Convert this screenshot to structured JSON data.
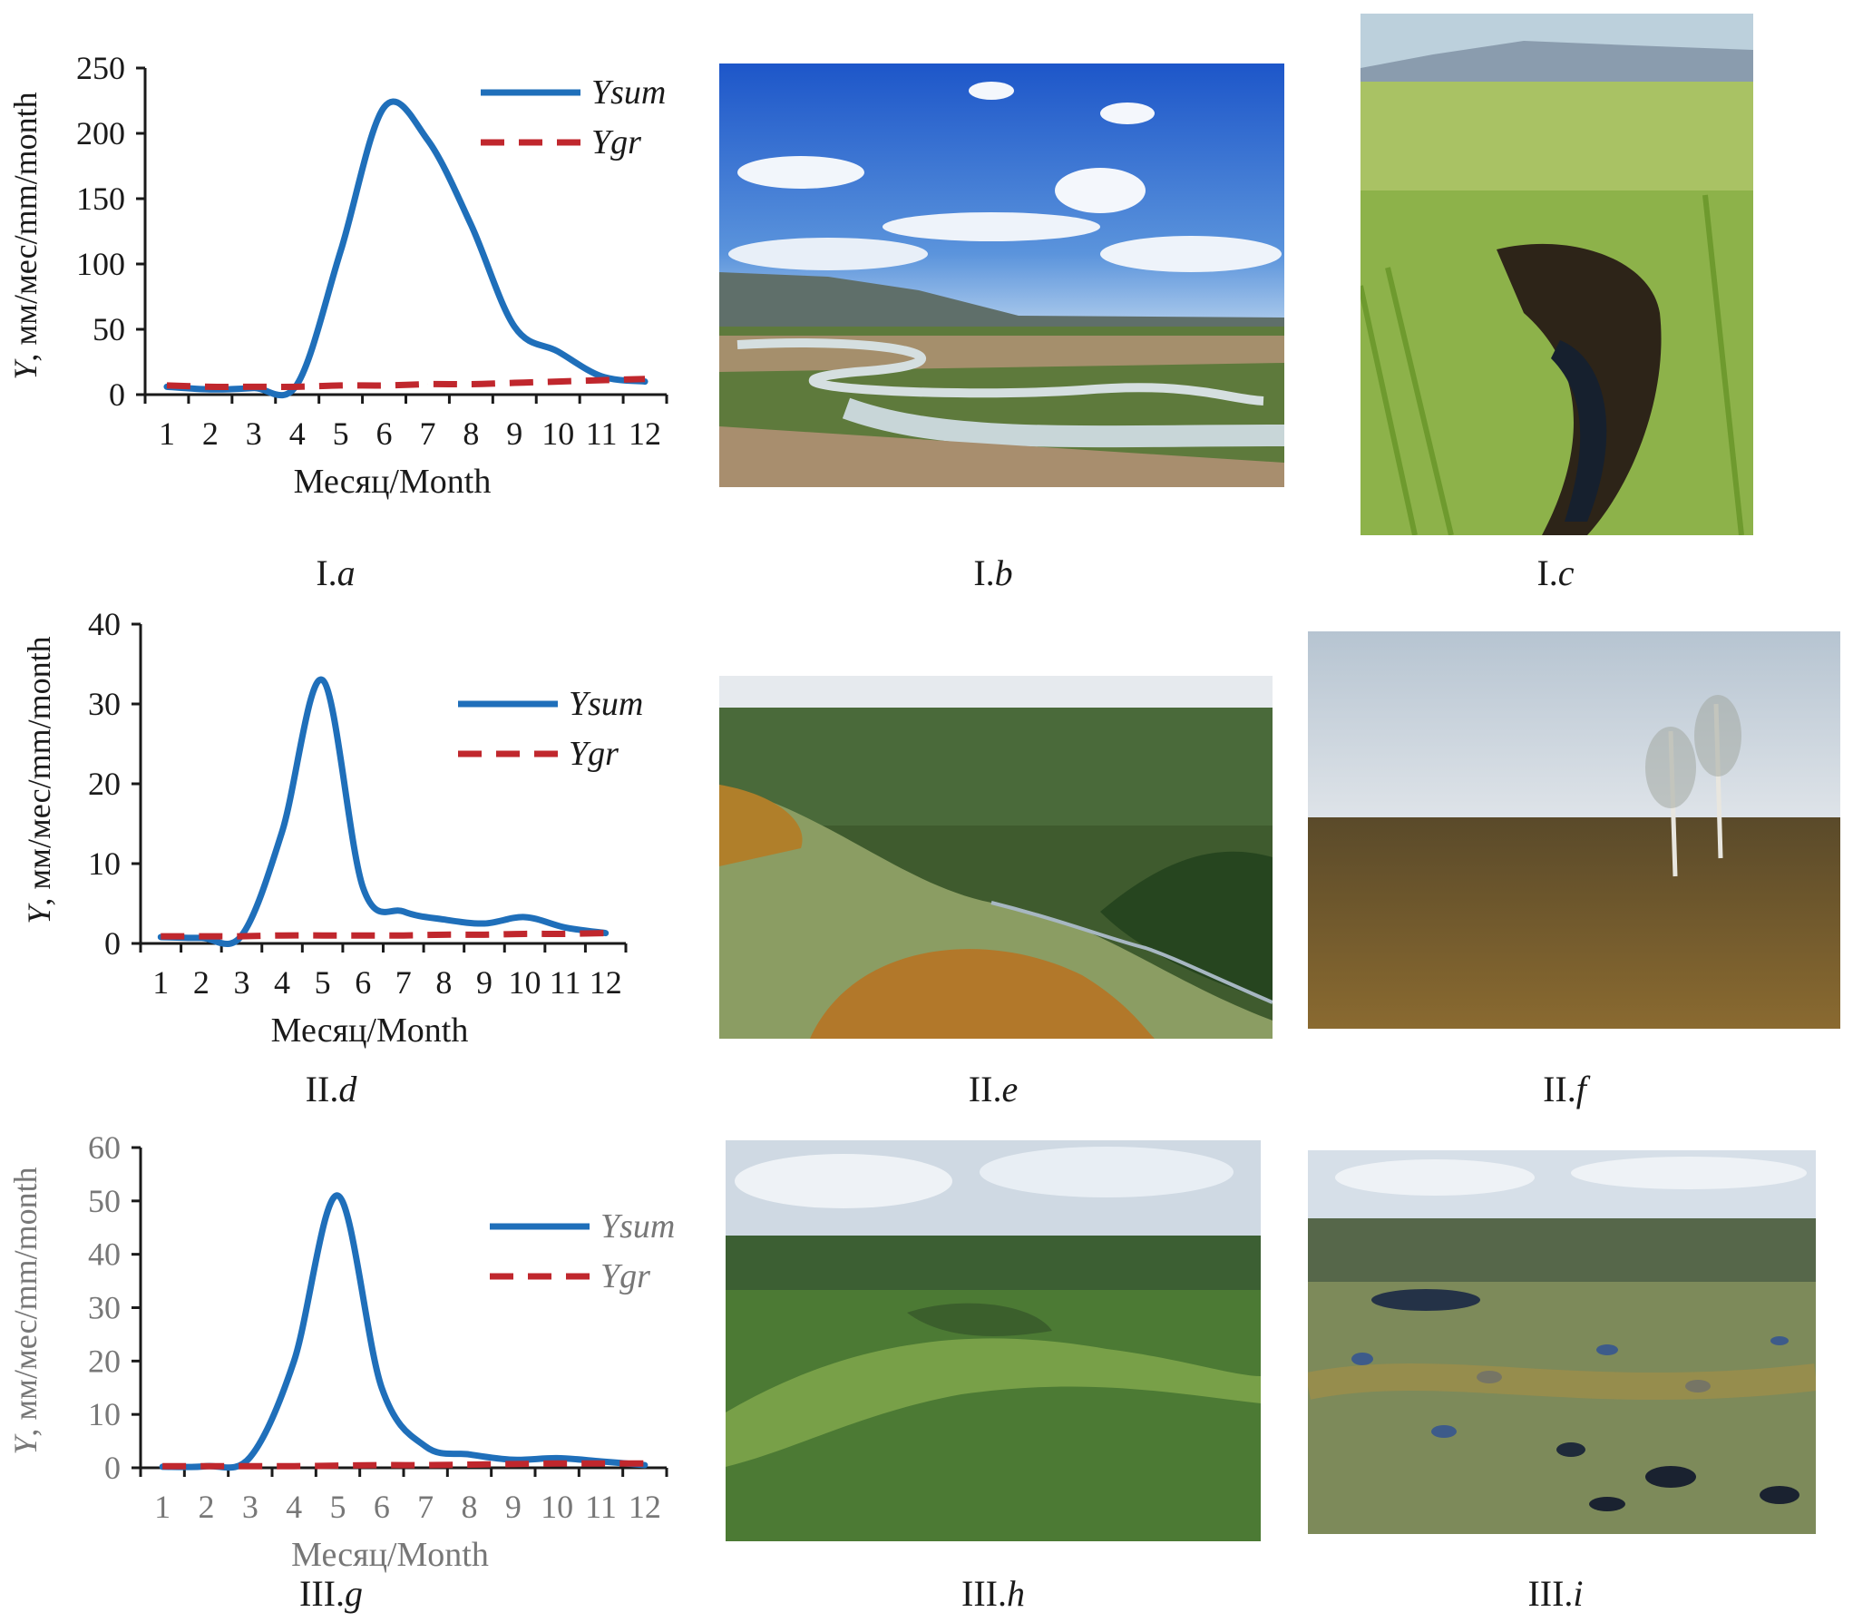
{
  "chart_data": [
    {
      "type": "line",
      "panel": "I.a",
      "xlabel": "Месяц/Month",
      "ylabel": "Y, мм/мес/mm/month",
      "ylim": [
        0,
        250
      ],
      "yticks": [
        0,
        50,
        100,
        150,
        200,
        250
      ],
      "x": [
        1,
        2,
        3,
        4,
        5,
        6,
        7,
        8,
        9,
        10,
        11,
        12
      ],
      "series": [
        {
          "name": "Ysum",
          "color": "#1f6fba",
          "style": "solid",
          "values": [
            6,
            4,
            5,
            8,
            110,
            220,
            195,
            130,
            52,
            33,
            14,
            10
          ]
        },
        {
          "name": "Ygr",
          "color": "#c0272d",
          "style": "dashed",
          "values": [
            7,
            6,
            6,
            6,
            7,
            7,
            8,
            8,
            9,
            10,
            11,
            12
          ]
        }
      ],
      "legend": "top-right"
    },
    {
      "type": "line",
      "panel": "II.d",
      "xlabel": "Месяц/Month",
      "ylabel": "Y, мм/мес/mm/month",
      "ylim": [
        0,
        40
      ],
      "yticks": [
        0,
        10,
        20,
        30,
        40
      ],
      "x": [
        1,
        2,
        3,
        4,
        5,
        6,
        7,
        8,
        9,
        10,
        11,
        12
      ],
      "series": [
        {
          "name": "Ysum",
          "color": "#1f6fba",
          "style": "solid",
          "values": [
            0.8,
            0.7,
            1.0,
            14,
            33,
            7,
            4,
            3,
            2.5,
            3.3,
            2,
            1.3
          ]
        },
        {
          "name": "Ygr",
          "color": "#c0272d",
          "style": "dashed",
          "values": [
            0.9,
            0.9,
            0.9,
            1.0,
            1.0,
            1.0,
            1.0,
            1.1,
            1.1,
            1.2,
            1.2,
            1.3
          ]
        }
      ],
      "legend": "top-right"
    },
    {
      "type": "line",
      "panel": "III.g",
      "xlabel": "Месяц/Month",
      "ylabel": "Y, мм/мес/mm/month",
      "ylim": [
        0,
        60
      ],
      "yticks": [
        0,
        10,
        20,
        30,
        40,
        50,
        60
      ],
      "x": [
        1,
        2,
        3,
        4,
        5,
        6,
        7,
        8,
        9,
        10,
        11,
        12
      ],
      "series": [
        {
          "name": "Ysum",
          "color": "#1f6fba",
          "style": "solid",
          "values": [
            0.2,
            0.3,
            2,
            20,
            51,
            15,
            4,
            2.5,
            1.5,
            1.8,
            1.2,
            0.5
          ]
        },
        {
          "name": "Ygr",
          "color": "#c0272d",
          "style": "dashed",
          "values": [
            0.3,
            0.3,
            0.3,
            0.3,
            0.4,
            0.5,
            0.5,
            0.6,
            0.7,
            0.8,
            0.8,
            0.8
          ]
        }
      ],
      "legend": "top-right"
    }
  ],
  "labels": {
    "Ia": "I.",
    "Ia_it": "a",
    "Ib": "I.",
    "Ib_it": "b",
    "Ic": "I.",
    "Ic_it": "c",
    "IId": "II.",
    "IId_it": "d",
    "IIe": "II.",
    "IIe_it": "e",
    "IIf": "II.",
    "IIf_it": "f",
    "IIIg": "III.",
    "IIIg_it": "g",
    "IIIh": "III.",
    "IIIh_it": "h",
    "IIIi": "III.",
    "IIIi_it": "i"
  },
  "colors": {
    "ysum": "#1f6fba",
    "ygr": "#c0272d",
    "axis": "#1a1a1a",
    "axis_grey": "#777777"
  }
}
